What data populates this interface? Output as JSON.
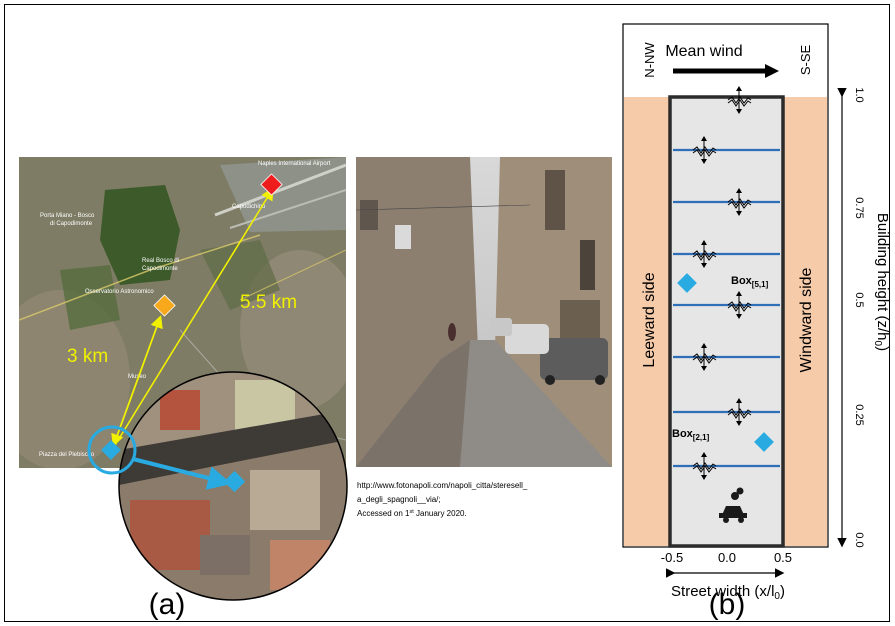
{
  "panel_a": {
    "label": "(a)",
    "map_labels": {
      "airport": "Naples International Airport",
      "capodichino": "Capodichino",
      "porta_miano": "Porta Miano - Bosco",
      "di_capodimonte": "di Capodimonte",
      "reale_bosco": "Real Bosco di",
      "reale_bosco2": "Capodimonte",
      "osservatorio": "Osservatorio Astronomico",
      "museo": "Museo",
      "piazza": "Piazza del Plebiscito"
    },
    "distance_far": "5.5 km",
    "distance_near": "3 km"
  },
  "photo": {
    "caption_line1": "http://www.fotonapoli.com/napoli_citta/steresell_",
    "caption_line2": "a_degli_spagnoli__via/;",
    "caption_line3_prefix": "Accessed on 1",
    "caption_line3_sup": "st",
    "caption_line3_suffix": " January 2020."
  },
  "panel_b": {
    "label": "(b)",
    "mean_wind": "Mean wind",
    "left_dir": "N-NW",
    "right_dir": "S-SE",
    "leeward": "Leeward side",
    "windward": "Windward side",
    "box_upper_main": "Box",
    "box_upper_sub": "[5,1]",
    "box_lower_main": "Box",
    "box_lower_sub": "[2,1]",
    "x_ticks": [
      "-0.5",
      "0.0",
      "0.5"
    ],
    "x_label": "Street width (x/l",
    "x_label_sub": "0",
    "x_label_end": ")",
    "y_ticks": [
      "1.0",
      "0.75",
      "0.5",
      "0.25",
      "0.0"
    ],
    "y_label": "Building height (z/h",
    "y_label_sub": "0",
    "y_label_end": ")"
  },
  "colors": {
    "building": "#f5cbaa",
    "street": "#e6e6e6",
    "box_line": "#2e6fb7",
    "marker": "#29abe2",
    "red_marker": "#ee1c1c",
    "orange_marker": "#f7a81b",
    "yellow": "#f0f000"
  }
}
